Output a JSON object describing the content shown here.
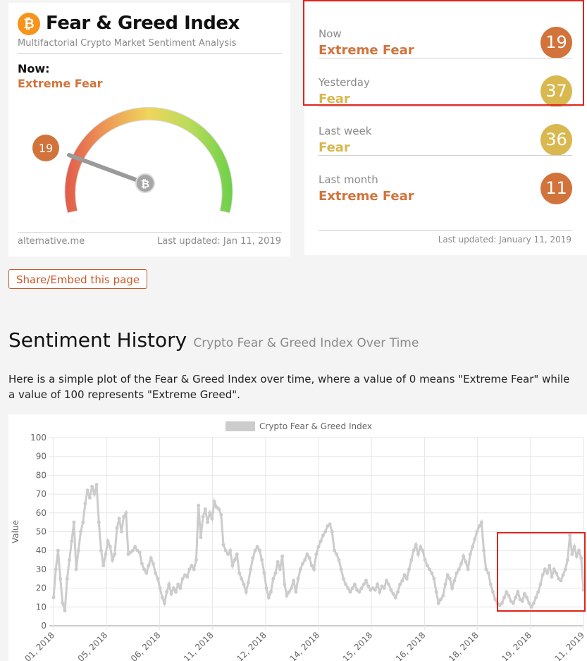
{
  "widget": {
    "brand_icon": "bitcoin-icon",
    "title": "Fear & Greed Index",
    "subtitle": "Multifactorial Crypto Market Sentiment Analysis",
    "now_label": "Now:",
    "now_value": "Extreme Fear",
    "gauge_value": "19",
    "footer_source": "alternative.me",
    "footer_updated": "Last updated: Jan 11, 2019"
  },
  "history": {
    "items": [
      {
        "label": "Now",
        "classification": "Extreme Fear",
        "value": "19",
        "color": "#d2733c"
      },
      {
        "label": "Yesterday",
        "classification": "Fear",
        "value": "37",
        "color": "#d8b84f"
      },
      {
        "label": "Last week",
        "classification": "Fear",
        "value": "36",
        "color": "#d8b84f"
      },
      {
        "label": "Last month",
        "classification": "Extreme Fear",
        "value": "11",
        "color": "#d2733c"
      }
    ],
    "last_updated": "Last updated: January 11, 2019"
  },
  "share_button": "Share/Embed this page",
  "section": {
    "title": "Sentiment History",
    "subtitle": "Crypto Fear & Greed Index Over Time",
    "description": "Here is a simple plot of the Fear & Greed Index over time, where a value of 0 means \"Extreme Fear\" while a value of 100 represents \"Extreme Greed\"."
  },
  "colors": {
    "extreme_fear": "#d2733c",
    "fear": "#d8b84f",
    "highlight": "#e0231c",
    "line": "#cccccc"
  },
  "chart_data": {
    "type": "line",
    "title": "",
    "legend": "Crypto Fear & Greed Index",
    "legend_position": "top",
    "ylabel": "Value",
    "ylim": [
      0,
      100
    ],
    "yticks": [
      0,
      10,
      20,
      30,
      40,
      50,
      60,
      70,
      80,
      90,
      100
    ],
    "xtick_labels": [
      "…01, 2018",
      "…05, 2018",
      "…06, 2018",
      "…11, 2018",
      "…12, 2018",
      "…14, 2018",
      "…15, 2018",
      "…16, 2018",
      "…18, 2018",
      "…19, 2018",
      "…11, 2019"
    ],
    "grid": true,
    "series": [
      {
        "name": "Crypto Fear & Greed Index",
        "values": [
          15,
          30,
          40,
          25,
          12,
          8,
          25,
          35,
          45,
          55,
          30,
          40,
          50,
          55,
          65,
          72,
          68,
          74,
          70,
          75,
          55,
          40,
          32,
          38,
          45,
          42,
          35,
          38,
          52,
          57,
          50,
          58,
          60,
          38,
          39,
          40,
          42,
          40,
          39,
          33,
          30,
          28,
          32,
          36,
          33,
          28,
          25,
          20,
          15,
          12,
          18,
          22,
          17,
          20,
          18,
          22,
          20,
          25,
          27,
          26,
          30,
          32,
          30,
          35,
          64,
          47,
          58,
          62,
          55,
          60,
          57,
          66,
          63,
          62,
          59,
          43,
          40,
          38,
          40,
          32,
          35,
          38,
          28,
          25,
          22,
          18,
          23,
          30,
          36,
          40,
          42,
          40,
          35,
          28,
          20,
          15,
          18,
          25,
          28,
          34,
          30,
          37,
          22,
          16,
          18,
          20,
          24,
          18,
          25,
          30,
          33,
          35,
          38,
          36,
          32,
          30,
          38,
          42,
          45,
          48,
          50,
          53,
          54,
          50,
          40,
          38,
          35,
          30,
          25,
          22,
          20,
          18,
          20,
          22,
          19,
          18,
          20,
          22,
          24,
          21,
          19,
          20,
          19,
          22,
          18,
          21,
          20,
          24,
          22,
          19,
          17,
          15,
          18,
          22,
          24,
          27,
          25,
          30,
          35,
          40,
          43,
          38,
          42,
          40,
          35,
          32,
          30,
          28,
          25,
          18,
          12,
          14,
          16,
          22,
          27,
          25,
          20,
          24,
          28,
          30,
          33,
          37,
          34,
          30,
          38,
          42,
          46,
          50,
          53,
          55,
          40,
          30,
          28,
          22,
          18,
          14,
          12,
          11,
          12,
          15,
          18,
          16,
          13,
          12,
          15,
          18,
          14,
          13,
          17,
          15,
          12,
          10,
          12,
          15,
          18,
          22,
          27,
          30,
          28,
          32,
          26,
          30,
          28,
          25,
          24,
          27,
          30,
          35,
          48,
          38,
          42,
          37,
          40,
          36,
          19
        ]
      }
    ]
  }
}
